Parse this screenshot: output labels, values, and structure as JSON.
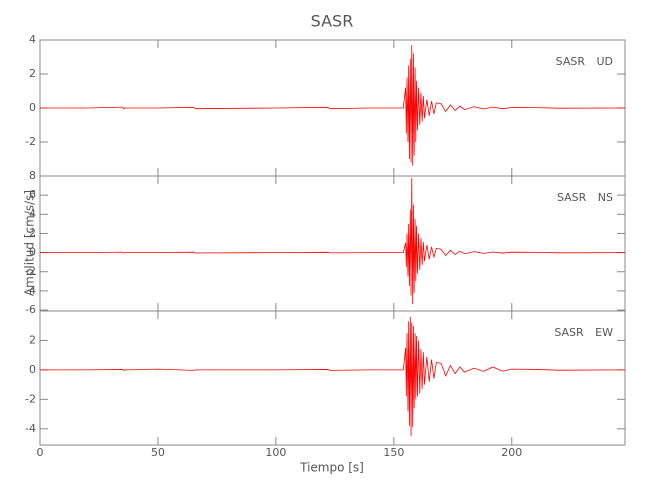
{
  "figure": {
    "title": "SASR",
    "ylabel": "Amplitud [cm/s/s]",
    "xlabel": "Tiempo [s]"
  },
  "chart_data": [
    {
      "type": "line",
      "label": "SASR UD",
      "color": "#ff0000",
      "xlim": [
        0,
        248
      ],
      "ylim": [
        -4,
        4
      ],
      "yticks": [
        -2,
        0,
        2,
        4
      ],
      "x": [
        0,
        20,
        35,
        35.5,
        36,
        50,
        65,
        66,
        100,
        122,
        123,
        140,
        154,
        155,
        155.3,
        155.6,
        156,
        156.3,
        156.6,
        157,
        157.3,
        157.6,
        158,
        158.3,
        158.6,
        159,
        159.3,
        159.6,
        160,
        160.5,
        161,
        161.5,
        162,
        162.5,
        163,
        164,
        165,
        166,
        167,
        168,
        170,
        172,
        174,
        176,
        178,
        180,
        184,
        188,
        192,
        196,
        200,
        210,
        220,
        248
      ],
      "values": [
        0,
        0,
        0.05,
        -0.05,
        0,
        0,
        0.04,
        -0.04,
        0,
        0.04,
        -0.04,
        0,
        0,
        1.2,
        -1.5,
        1.8,
        -2.0,
        2.5,
        -3.0,
        2.9,
        -3.2,
        3.7,
        -3.4,
        3.2,
        -2.8,
        2.4,
        -2.0,
        1.6,
        -1.3,
        1.2,
        -1.0,
        0.9,
        -0.8,
        0.7,
        -0.6,
        0.5,
        -0.45,
        0.4,
        -0.35,
        0.3,
        0.25,
        -0.2,
        0.18,
        -0.15,
        0.12,
        -0.1,
        0.08,
        -0.06,
        0.05,
        -0.04,
        0.03,
        0.02,
        -0.01,
        0
      ]
    },
    {
      "type": "line",
      "label": "SASR NS",
      "color": "#ff0000",
      "xlim": [
        0,
        248
      ],
      "ylim": [
        -6.1,
        8
      ],
      "yticks": [
        -6,
        -4,
        -2,
        0,
        2,
        4,
        6,
        8
      ],
      "x": [
        0,
        20,
        35,
        35.5,
        36,
        50,
        65,
        66,
        100,
        122,
        123,
        140,
        154,
        155,
        155.3,
        155.6,
        156,
        156.3,
        156.6,
        157,
        157.3,
        157.6,
        158,
        158.3,
        158.6,
        159,
        159.3,
        159.6,
        160,
        160.5,
        161,
        161.5,
        162,
        162.5,
        163,
        164,
        165,
        166,
        167,
        168,
        170,
        172,
        174,
        176,
        178,
        180,
        184,
        188,
        192,
        196,
        200,
        210,
        220,
        248
      ],
      "values": [
        0,
        0,
        0.05,
        -0.05,
        0,
        0,
        0.04,
        -0.04,
        0,
        0.03,
        -0.03,
        0,
        0,
        1.0,
        -1.5,
        2.0,
        -2.5,
        3.0,
        -3.5,
        4.5,
        -4.5,
        7.8,
        -5.4,
        5.0,
        -4.2,
        3.5,
        -3.0,
        2.8,
        -2.2,
        2.0,
        -1.8,
        1.5,
        -1.3,
        1.1,
        -0.9,
        0.8,
        -0.7,
        0.6,
        -0.5,
        0.45,
        0.35,
        -0.3,
        0.25,
        -0.2,
        0.15,
        -0.12,
        0.1,
        -0.08,
        0.06,
        -0.05,
        0.04,
        0.02,
        -0.02,
        0
      ]
    },
    {
      "type": "line",
      "label": "SASR EW",
      "color": "#ff0000",
      "xlim": [
        0,
        248
      ],
      "ylim": [
        -5.1,
        4
      ],
      "yticks": [
        -4,
        -2,
        0,
        2
      ],
      "xticks": [
        0,
        50,
        100,
        150,
        200
      ],
      "x": [
        0,
        20,
        35,
        35.5,
        36,
        50,
        65,
        66,
        100,
        122,
        123,
        140,
        154,
        155,
        155.3,
        155.6,
        156,
        156.3,
        156.6,
        157,
        157.3,
        157.6,
        158,
        158.3,
        158.6,
        159,
        159.3,
        159.6,
        160,
        160.5,
        161,
        161.5,
        162,
        162.5,
        163,
        164,
        165,
        166,
        167,
        168,
        170,
        172,
        174,
        176,
        178,
        180,
        184,
        188,
        192,
        196,
        200,
        210,
        220,
        248
      ],
      "values": [
        0,
        0,
        0.03,
        -0.03,
        0,
        0.05,
        -0.03,
        0,
        0,
        0.03,
        -0.03,
        0,
        0,
        1.5,
        -1.8,
        2.5,
        -2.8,
        3.3,
        -3.8,
        3.6,
        -4.5,
        3.2,
        -3.9,
        3.0,
        -2.6,
        2.5,
        -2.0,
        2.3,
        -1.8,
        2.0,
        -1.6,
        1.4,
        -1.3,
        1.2,
        -1.0,
        0.9,
        -0.8,
        0.7,
        -0.6,
        0.5,
        0.45,
        -0.4,
        0.3,
        -0.25,
        0.2,
        -0.15,
        0.12,
        -0.1,
        0.2,
        -0.08,
        0.05,
        0.03,
        -0.02,
        0
      ]
    }
  ]
}
